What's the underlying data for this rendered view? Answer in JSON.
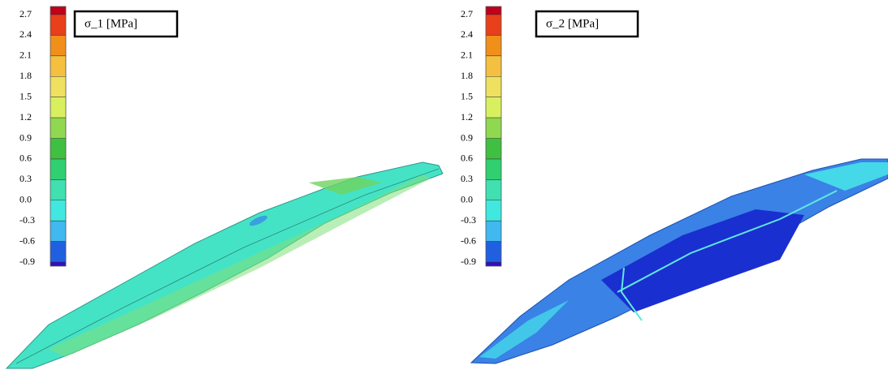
{
  "panels": [
    {
      "title": "σ_1  [MPa]",
      "scale_labels": [
        "2.7",
        "2.4",
        "2.1",
        "1.8",
        "1.5",
        "1.2",
        "0.9",
        "0.6",
        "0.3",
        "0.0",
        "-0.3",
        "-0.6",
        "-0.9"
      ]
    },
    {
      "title": "σ_2  [MPa]",
      "scale_labels": [
        "2.7",
        "2.4",
        "2.1",
        "1.8",
        "1.5",
        "1.2",
        "0.9",
        "0.6",
        "0.3",
        "0.0",
        "-0.3",
        "-0.6",
        "-0.9"
      ]
    }
  ]
}
